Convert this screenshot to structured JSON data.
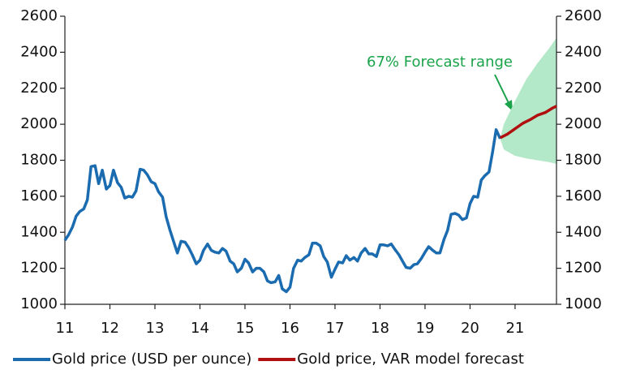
{
  "chart_data": {
    "type": "line",
    "annotation": "67% Forecast range",
    "xlim": [
      11,
      21.92
    ],
    "xticks": [
      11,
      12,
      13,
      14,
      15,
      16,
      17,
      18,
      19,
      20,
      21
    ],
    "ylim": [
      1000,
      2600
    ],
    "yticks": [
      1000,
      1200,
      1400,
      1600,
      1800,
      2000,
      2200,
      2400,
      2600
    ],
    "y2lim": [
      1000,
      2600
    ],
    "y2ticks": [
      1000,
      1200,
      1400,
      1600,
      1800,
      2000,
      2200,
      2400,
      2600
    ],
    "forecast_range": {
      "color": "#b3e8c9",
      "x": [
        20.67,
        20.75,
        21.0,
        21.25,
        21.5,
        21.75,
        21.92
      ],
      "high": [
        1925,
        2000,
        2130,
        2250,
        2340,
        2420,
        2480
      ],
      "low": [
        1920,
        1860,
        1825,
        1810,
        1800,
        1790,
        1780
      ]
    },
    "series": [
      {
        "name": "Gold price (USD per ounce)",
        "color": "#1a6bb0",
        "x": [
          11.0,
          11.08,
          11.17,
          11.25,
          11.33,
          11.42,
          11.5,
          11.58,
          11.67,
          11.75,
          11.83,
          11.92,
          12.0,
          12.08,
          12.17,
          12.25,
          12.33,
          12.42,
          12.5,
          12.58,
          12.67,
          12.75,
          12.83,
          12.92,
          13.0,
          13.08,
          13.17,
          13.25,
          13.33,
          13.42,
          13.5,
          13.58,
          13.67,
          13.75,
          13.83,
          13.92,
          14.0,
          14.08,
          14.17,
          14.25,
          14.33,
          14.42,
          14.5,
          14.58,
          14.67,
          14.75,
          14.83,
          14.92,
          15.0,
          15.08,
          15.17,
          15.25,
          15.33,
          15.42,
          15.5,
          15.58,
          15.67,
          15.75,
          15.83,
          15.92,
          16.0,
          16.08,
          16.17,
          16.25,
          16.33,
          16.42,
          16.5,
          16.58,
          16.67,
          16.75,
          16.83,
          16.92,
          17.0,
          17.08,
          17.17,
          17.25,
          17.33,
          17.42,
          17.5,
          17.58,
          17.67,
          17.75,
          17.83,
          17.92,
          18.0,
          18.08,
          18.17,
          18.25,
          18.33,
          18.42,
          18.5,
          18.58,
          18.67,
          18.75,
          18.83,
          18.92,
          19.0,
          19.08,
          19.17,
          19.25,
          19.33,
          19.42,
          19.5,
          19.58,
          19.67,
          19.75,
          19.83,
          19.92,
          20.0,
          20.08,
          20.17,
          20.25,
          20.33,
          20.42,
          20.5,
          20.58,
          20.67
        ],
        "values": [
          1355,
          1385,
          1430,
          1490,
          1515,
          1530,
          1580,
          1765,
          1770,
          1670,
          1745,
          1640,
          1660,
          1745,
          1675,
          1650,
          1590,
          1600,
          1595,
          1630,
          1750,
          1745,
          1720,
          1680,
          1670,
          1625,
          1595,
          1485,
          1415,
          1345,
          1285,
          1350,
          1345,
          1315,
          1275,
          1225,
          1245,
          1300,
          1335,
          1300,
          1290,
          1285,
          1310,
          1295,
          1240,
          1225,
          1180,
          1200,
          1250,
          1230,
          1180,
          1200,
          1200,
          1180,
          1130,
          1120,
          1125,
          1160,
          1085,
          1070,
          1095,
          1200,
          1245,
          1240,
          1260,
          1275,
          1340,
          1340,
          1325,
          1265,
          1235,
          1150,
          1195,
          1235,
          1230,
          1270,
          1245,
          1260,
          1240,
          1285,
          1310,
          1280,
          1280,
          1265,
          1330,
          1330,
          1325,
          1335,
          1305,
          1275,
          1240,
          1205,
          1200,
          1220,
          1225,
          1255,
          1290,
          1320,
          1300,
          1285,
          1285,
          1360,
          1410,
          1500,
          1505,
          1495,
          1470,
          1480,
          1560,
          1600,
          1595,
          1690,
          1715,
          1735,
          1845,
          1970,
          1920
        ]
      },
      {
        "name": "Gold price, VAR model forecast",
        "color": "#b01010",
        "x": [
          20.67,
          20.83,
          21.0,
          21.17,
          21.33,
          21.5,
          21.67,
          21.83,
          21.92
        ],
        "values": [
          1925,
          1945,
          1975,
          2005,
          2025,
          2050,
          2065,
          2090,
          2100
        ]
      }
    ]
  }
}
